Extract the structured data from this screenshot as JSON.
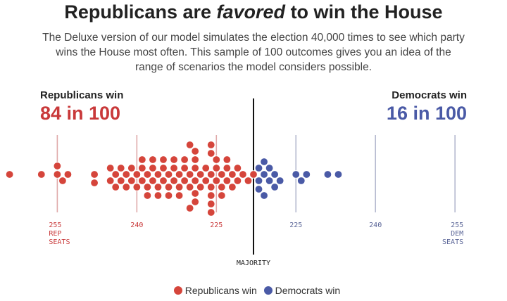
{
  "title": {
    "pre": "Republicans are ",
    "em": "favored",
    "post": " to win the House"
  },
  "subtitle": "The Deluxe version of our model simulates the election 40,000 times to see which party wins the House most often. This sample of 100 outcomes gives you an idea of the range of scenarios the model considers possible.",
  "rep": {
    "label": "Republicans win",
    "odds": "84 in 100"
  },
  "dem": {
    "label": "Democrats win",
    "odds": "16 in 100"
  },
  "colors": {
    "republican": "#d5453b",
    "democrat": "#4a5aa6",
    "rep_tick": "#e0aaaa",
    "dem_tick": "#b5b9cf"
  },
  "chart_data": {
    "type": "beeswarm",
    "majority": 218,
    "majority_label": "MAJORITY",
    "ticks": {
      "rep": [
        {
          "value": 255,
          "label": [
            "255",
            "REP",
            "SEATS"
          ]
        },
        {
          "value": 240,
          "label": [
            "240"
          ]
        },
        {
          "value": 225,
          "label": [
            "225"
          ]
        }
      ],
      "dem": [
        {
          "value": 225,
          "label": [
            "225"
          ]
        },
        {
          "value": 240,
          "label": [
            "240"
          ]
        },
        {
          "value": 255,
          "label": [
            "255",
            "DEM",
            "SEATS"
          ]
        }
      ]
    },
    "series": [
      {
        "name": "Republicans win",
        "party": "rep",
        "seats": [
          264,
          258,
          255,
          255,
          254,
          253,
          248,
          248,
          245,
          245,
          244,
          244,
          243,
          243,
          242,
          242,
          241,
          241,
          240,
          240,
          239,
          239,
          239,
          238,
          238,
          238,
          237,
          237,
          237,
          236,
          236,
          236,
          235,
          235,
          235,
          234,
          234,
          234,
          233,
          233,
          233,
          232,
          232,
          232,
          231,
          231,
          231,
          230,
          230,
          230,
          230,
          229,
          229,
          229,
          229,
          229,
          229,
          228,
          228,
          227,
          227,
          226,
          226,
          226,
          226,
          226,
          226,
          226,
          225,
          225,
          225,
          224,
          224,
          224,
          223,
          223,
          223,
          222,
          222,
          221,
          221,
          220,
          219,
          218
        ]
      },
      {
        "name": "Democrats win",
        "party": "dem",
        "seats": [
          218,
          218,
          218,
          219,
          219,
          219,
          220,
          220,
          221,
          221,
          222,
          225,
          226,
          227,
          231,
          233
        ]
      }
    ]
  },
  "legend": [
    {
      "label": "Republicans win",
      "party": "rep"
    },
    {
      "label": "Democrats win",
      "party": "dem"
    }
  ]
}
